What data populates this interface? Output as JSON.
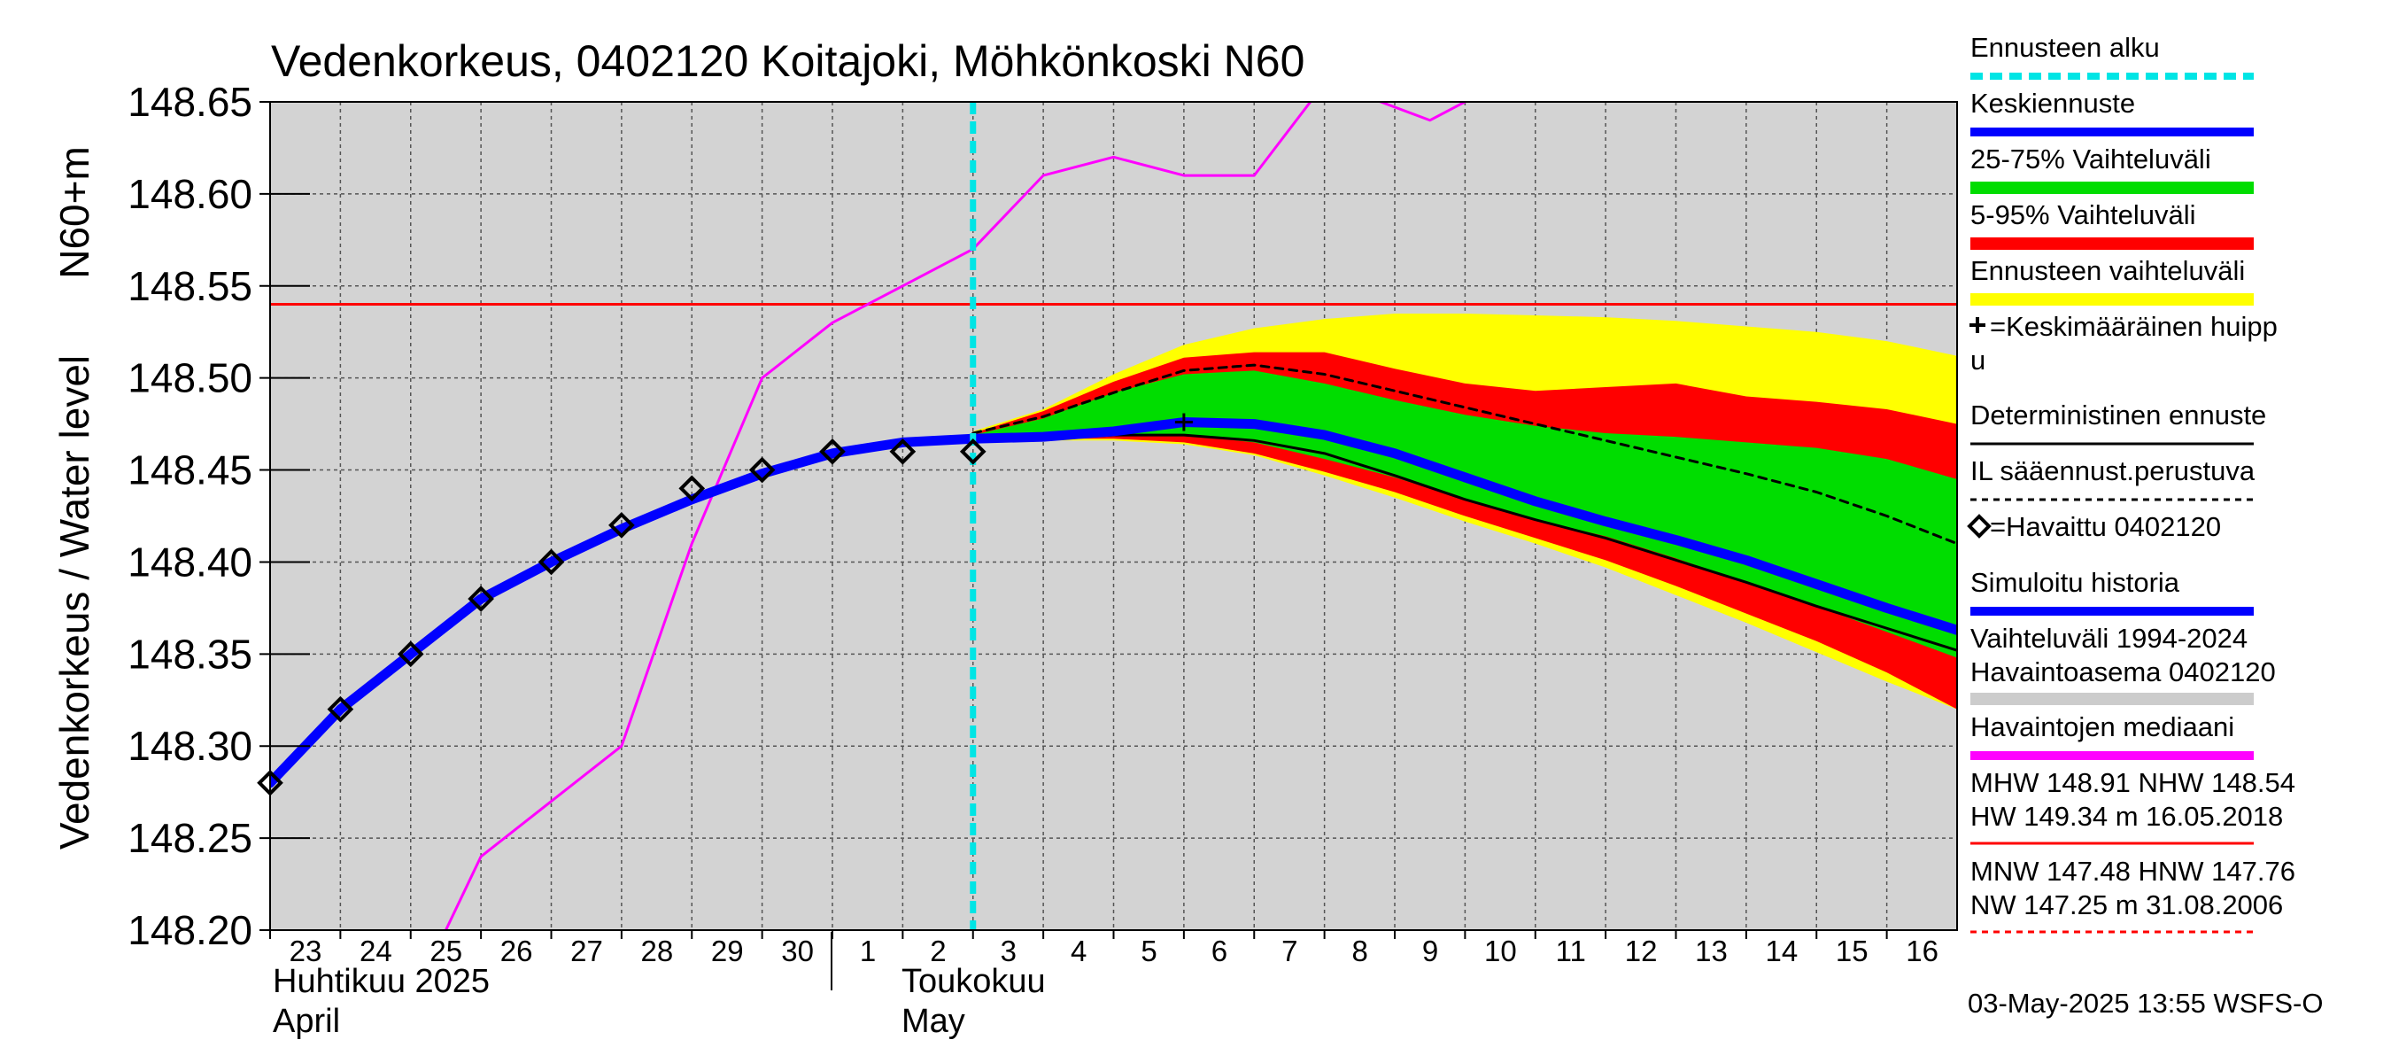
{
  "chart_data": {
    "type": "line",
    "title": "Vedenkorkeus, 0402120 Koitajoki, Möhkönkoski N60",
    "ylabel": "Vedenkorkeus / Water level",
    "ylabel_unit": "N60+m",
    "ylim": [
      148.2,
      148.65
    ],
    "yticks": [
      "148.20",
      "148.25",
      "148.30",
      "148.35",
      "148.40",
      "148.45",
      "148.50",
      "148.55",
      "148.60",
      "148.65"
    ],
    "xlim": [
      0,
      24
    ],
    "xtick_labels": [
      "23",
      "24",
      "25",
      "26",
      "27",
      "28",
      "29",
      "30",
      "1",
      "2",
      "3",
      "4",
      "5",
      "6",
      "7",
      "8",
      "9",
      "10",
      "11",
      "12",
      "13",
      "14",
      "15",
      "16"
    ],
    "month_labels": {
      "april_fi": "Huhtikuu  2025",
      "april_en": "April",
      "may_fi": "Toukokuu",
      "may_en": "May"
    },
    "grid": true,
    "legend_position": "right",
    "forecast_start_x": 10.0,
    "hw_line": 148.54,
    "bands": [
      {
        "name": "Ennusteen vaihteluväli",
        "color": "#ffff00",
        "x": [
          10,
          11,
          12,
          13,
          14,
          15,
          16,
          17,
          18,
          19,
          20,
          21,
          22,
          23,
          24
        ],
        "upper": [
          148.471,
          148.483,
          148.502,
          148.518,
          148.527,
          148.532,
          148.535,
          148.535,
          148.534,
          148.533,
          148.531,
          148.528,
          148.525,
          148.52,
          148.512
        ],
        "lower": [
          148.466,
          148.466,
          148.466,
          148.464,
          148.458,
          148.447,
          148.435,
          148.422,
          148.41,
          148.397,
          148.382,
          148.367,
          148.351,
          148.335,
          148.32
        ]
      },
      {
        "name": "5-95% Vaihteluväli",
        "color": "#ff0000",
        "x": [
          10,
          11,
          12,
          13,
          14,
          15,
          16,
          17,
          18,
          19,
          20,
          21,
          22,
          23,
          24
        ],
        "upper": [
          148.47,
          148.482,
          148.498,
          148.511,
          148.514,
          148.514,
          148.505,
          148.497,
          148.493,
          148.495,
          148.497,
          148.49,
          148.487,
          148.483,
          148.475
        ],
        "lower": [
          148.466,
          148.467,
          148.467,
          148.465,
          148.459,
          148.449,
          148.438,
          148.425,
          148.413,
          148.401,
          148.387,
          148.372,
          148.357,
          148.34,
          148.32
        ]
      },
      {
        "name": "25-75% Vaihteluväli",
        "color": "#00dd00",
        "x": [
          10,
          11,
          12,
          13,
          14,
          15,
          16,
          17,
          18,
          19,
          20,
          21,
          22,
          23,
          24
        ],
        "upper": [
          148.469,
          148.478,
          148.492,
          148.502,
          148.504,
          148.497,
          148.488,
          148.48,
          148.474,
          148.47,
          148.468,
          148.465,
          148.462,
          148.456,
          148.445
        ],
        "lower": [
          148.467,
          148.468,
          148.469,
          148.469,
          148.465,
          148.456,
          148.446,
          148.434,
          148.423,
          148.414,
          148.402,
          148.389,
          148.376,
          148.362,
          148.348
        ]
      }
    ],
    "series": [
      {
        "name": "Havaintojen mediaani",
        "color": "#ff00ff",
        "width": 3,
        "x": [
          2.5,
          3,
          4,
          5,
          6,
          7,
          8,
          9,
          10,
          11,
          12,
          13,
          14,
          15,
          15.8,
          16.5,
          17,
          17.3
        ],
        "y": [
          148.2,
          148.24,
          148.27,
          148.3,
          148.41,
          148.5,
          148.53,
          148.55,
          148.57,
          148.61,
          148.62,
          148.61,
          148.61,
          148.66,
          148.65,
          148.64,
          148.65,
          148.66
        ]
      },
      {
        "name": "IL sääennust.perustuva",
        "color": "#000000",
        "width": 3,
        "dash": "9,7",
        "x": [
          10,
          11,
          12,
          13,
          14,
          15,
          16,
          17,
          18,
          19,
          20,
          21,
          22,
          23,
          24
        ],
        "y": [
          148.47,
          148.479,
          148.492,
          148.504,
          148.507,
          148.502,
          148.493,
          148.484,
          148.475,
          148.466,
          148.457,
          148.448,
          148.438,
          148.425,
          148.41
        ]
      },
      {
        "name": "Deterministinen ennuste",
        "color": "#000000",
        "width": 3,
        "x": [
          10,
          11,
          12,
          13,
          14,
          15,
          16,
          17,
          18,
          19,
          20,
          21,
          22,
          23,
          24
        ],
        "y": [
          148.466,
          148.467,
          148.469,
          148.469,
          148.466,
          148.459,
          148.447,
          148.434,
          148.423,
          148.413,
          148.401,
          148.389,
          148.376,
          148.364,
          148.352
        ]
      },
      {
        "name": "Simuloitu historia",
        "color": "#0000ff",
        "width": 11,
        "x": [
          0,
          1,
          2,
          3,
          4,
          5,
          6,
          7,
          8,
          9,
          10,
          11,
          12,
          13,
          14,
          15,
          16,
          17,
          18,
          19,
          20,
          21,
          22,
          23,
          24
        ],
        "y": [
          148.28,
          148.32,
          148.35,
          148.38,
          148.4,
          148.418,
          148.434,
          148.448,
          148.459,
          148.465,
          148.467,
          148.468,
          148.471,
          148.476,
          148.475,
          148.469,
          148.459,
          148.446,
          148.433,
          148.422,
          148.412,
          148.401,
          148.388,
          148.375,
          148.363
        ]
      },
      {
        "name": "Keskiennuste",
        "color": "#0000ff",
        "width": 9,
        "x": [
          10,
          11,
          12,
          13,
          14,
          15,
          16,
          17,
          18,
          19,
          20,
          21,
          22,
          23,
          24
        ],
        "y": [
          148.467,
          148.468,
          148.471,
          148.476,
          148.475,
          148.469,
          148.459,
          148.446,
          148.433,
          148.422,
          148.412,
          148.401,
          148.388,
          148.375,
          148.363
        ]
      }
    ],
    "observed": {
      "name": "Havaittu 0402120",
      "x": [
        0,
        1,
        2,
        3,
        4,
        5,
        6,
        7,
        8,
        9,
        10
      ],
      "y": [
        148.28,
        148.32,
        148.35,
        148.38,
        148.4,
        148.42,
        148.44,
        148.45,
        148.46,
        148.46,
        148.46
      ]
    },
    "mean_peak": {
      "name": "Keskimääräinen huippu",
      "x": 13,
      "y": 148.476
    },
    "legend": [
      {
        "key": "fc_start",
        "label": "Ennusteen alku",
        "color": "#00e5e5",
        "style": "dashed"
      },
      {
        "key": "mean_fc",
        "label": "Keskiennuste",
        "color": "#0000ff",
        "style": "line"
      },
      {
        "key": "p2575",
        "label": "25-75% Vaihteluväli",
        "color": "#00dd00",
        "style": "band"
      },
      {
        "key": "p595",
        "label": "5-95% Vaihteluväli",
        "color": "#ff0000",
        "style": "band"
      },
      {
        "key": "range",
        "label": "Ennusteen vaihteluväli",
        "color": "#ffff00",
        "style": "band"
      },
      {
        "key": "peak",
        "label": "=Keskimääräinen huipp",
        "label2": "u",
        "color": "#000000",
        "style": "plus"
      },
      {
        "key": "determ",
        "label": "Deterministinen ennuste",
        "color": "#000000",
        "style": "thin"
      },
      {
        "key": "il",
        "label": "IL sääennust.perustuva",
        "color": "#000000",
        "style": "dotted"
      },
      {
        "key": "obs",
        "label": "=Havaittu 0402120",
        "color": "#000000",
        "style": "diamond"
      },
      {
        "key": "sim",
        "label": "Simuloitu historia",
        "color": "#0000ff",
        "style": "line"
      },
      {
        "key": "hist",
        "label": "Vaihteluväli 1994-2024",
        "label2": " Havaintoasema 0402120",
        "color": "#cccccc",
        "style": "band"
      },
      {
        "key": "median",
        "label": "Havaintojen mediaani",
        "color": "#ff00ff",
        "style": "line"
      },
      {
        "key": "hw",
        "label": "MHW 148.91 NHW 148.54",
        "label2": "HW 149.34 m 16.05.2018",
        "color": "#ff0000",
        "style": "thin"
      },
      {
        "key": "nw",
        "label": "MNW 147.48 HNW 147.76",
        "label2": "NW 147.25 m 31.08.2006",
        "color": "#ff0000",
        "style": "dotted"
      }
    ]
  },
  "footer": {
    "timestamp": "03-May-2025 13:55 WSFS-O"
  }
}
